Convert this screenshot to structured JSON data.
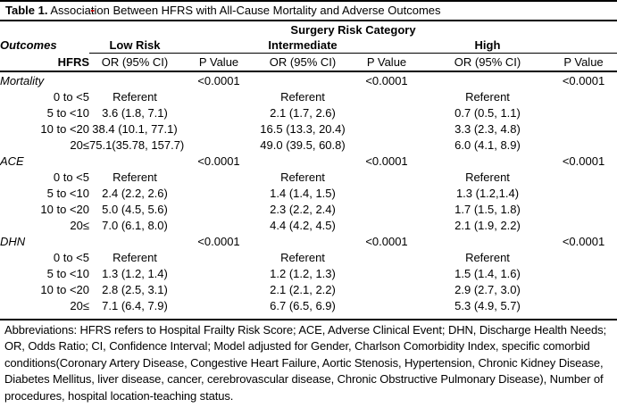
{
  "colors": {
    "text": "#000000",
    "background": "#ffffff",
    "rule": "#000000",
    "strike_mark": "#c00000"
  },
  "title": {
    "label": "Table 1.",
    "part1": " Associa",
    "struck_char": "t",
    "part2": "ion Between HFRS with All-Cause Mortality and Adverse Outcomes"
  },
  "table": {
    "span_header": "Surgery Risk Category",
    "outcomes_label": "Outcomes",
    "hfrs_label": "HFRS",
    "col_groups": [
      "Low Risk",
      "Intermediate",
      "High"
    ],
    "sub_headers": {
      "or": "OR (95% CI)",
      "p": "P Value"
    },
    "sections": [
      {
        "name": "Mortality",
        "p_values": [
          "<0.0001",
          "<0.0001",
          "<0.0001"
        ],
        "rows": [
          {
            "range": "0 to <5",
            "low": "Referent",
            "intermediate": "Referent",
            "high": "Referent"
          },
          {
            "range": "5 to <10",
            "low": "3.6 (1.8, 7.1)",
            "intermediate": "2.1 (1.7, 2.6)",
            "high": "0.7 (0.5, 1.1)"
          },
          {
            "range": "10 to <20",
            "low": "38.4 (10.1, 77.1)",
            "intermediate": "16.5 (13.3, 20.4)",
            "high": "3.3 (2.3, 4.8)"
          },
          {
            "range": "20≤",
            "low": "75.1(35.78, 157.7)",
            "intermediate": "49.0 (39.5, 60.8)",
            "high": "6.0 (4.1, 8.9)"
          }
        ]
      },
      {
        "name": "ACE",
        "p_values": [
          "<0.0001",
          "<0.0001",
          "<0.0001"
        ],
        "rows": [
          {
            "range": "0 to <5",
            "low": "Referent",
            "intermediate": "Referent",
            "high": "Referent"
          },
          {
            "range": "5 to <10",
            "low": "2.4 (2.2, 2.6)",
            "intermediate": "1.4 (1.4, 1.5)",
            "high": "1.3 (1.2,1.4)"
          },
          {
            "range": "10 to <20",
            "low": "5.0 (4.5, 5.6)",
            "intermediate": "2.3 (2.2, 2.4)",
            "high": "1.7 (1.5, 1.8)"
          },
          {
            "range": "20≤",
            "low": "7.0 (6.1, 8.0)",
            "intermediate": "4.4 (4.2, 4.5)",
            "high": "2.1 (1.9, 2.2)"
          }
        ]
      },
      {
        "name": "DHN",
        "p_values": [
          "<0.0001",
          "<0.0001",
          "<0.0001"
        ],
        "rows": [
          {
            "range": "0 to <5",
            "low": "Referent",
            "intermediate": "Referent",
            "high": "Referent"
          },
          {
            "range": "5 to <10",
            "low": "1.3 (1.2, 1.4)",
            "intermediate": "1.2 (1.2, 1.3)",
            "high": "1.5 (1.4, 1.6)"
          },
          {
            "range": "10 to <20",
            "low": "2.8 (2.5, 3.1)",
            "intermediate": "2.1 (2.1, 2.2)",
            "high": "2.9 (2.7, 3.0)"
          },
          {
            "range": "20≤",
            "low": "7.1 (6.4, 7.9)",
            "intermediate": "6.7 (6.5, 6.9)",
            "high": "5.3 (4.9, 5.7)"
          }
        ]
      }
    ]
  },
  "footnote": {
    "text": "Abbreviations: HFRS refers to Hospital Frailty Risk Score; ACE, Adverse Clinical Event; DHN, Discharge Health Needs; OR, Odds Ratio; CI, Confidence Interval; Model adjusted for Gender, Charlson Comorbidity Index, specific comorbid conditions(Coronary Artery Disease, Congestive Heart Failure, Aortic Stenosis, Hypertension, Chronic Kidney Disease, Diabetes Mellitus, liver disease, cancer, cerebrovascular disease, Chronic Obstructive Pulmonary Disease), Number of procedures, hospital location-teaching status."
  }
}
